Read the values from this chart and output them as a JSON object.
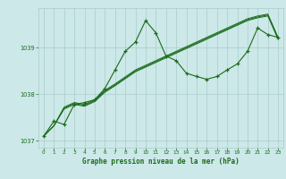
{
  "background_color": "#cce8e8",
  "grid_color": "#aacccc",
  "line_color": "#1a6b1a",
  "title": "Graphe pression niveau de la mer (hPa)",
  "xlim": [
    -0.5,
    23.5
  ],
  "ylim": [
    1036.85,
    1039.85
  ],
  "yticks": [
    1037,
    1038,
    1039
  ],
  "xticks": [
    0,
    1,
    2,
    3,
    4,
    5,
    6,
    7,
    8,
    9,
    10,
    11,
    12,
    13,
    14,
    15,
    16,
    17,
    18,
    19,
    20,
    21,
    22,
    23
  ],
  "line1": [
    1037.1,
    1037.42,
    1037.35,
    1037.78,
    1037.82,
    1037.88,
    1038.12,
    1038.52,
    1038.92,
    1039.12,
    1039.58,
    1039.32,
    1038.82,
    1038.72,
    1038.45,
    1038.38,
    1038.32,
    1038.38,
    1038.52,
    1038.65,
    1038.92,
    1039.42,
    1039.28,
    1039.22
  ],
  "line2": [
    1037.1,
    1037.32,
    1037.72,
    1037.82,
    1037.78,
    1037.88,
    1038.08,
    1038.22,
    1038.37,
    1038.52,
    1038.62,
    1038.72,
    1038.82,
    1038.92,
    1039.02,
    1039.12,
    1039.22,
    1039.32,
    1039.42,
    1039.52,
    1039.62,
    1039.68,
    1039.72,
    1039.22
  ],
  "line3": [
    1037.1,
    1037.32,
    1037.7,
    1037.8,
    1037.76,
    1037.86,
    1038.06,
    1038.2,
    1038.35,
    1038.5,
    1038.6,
    1038.7,
    1038.8,
    1038.9,
    1039.0,
    1039.1,
    1039.2,
    1039.3,
    1039.4,
    1039.5,
    1039.6,
    1039.66,
    1039.7,
    1039.2
  ],
  "line4": [
    1037.1,
    1037.32,
    1037.68,
    1037.78,
    1037.74,
    1037.84,
    1038.04,
    1038.18,
    1038.33,
    1038.48,
    1038.58,
    1038.68,
    1038.78,
    1038.88,
    1038.98,
    1039.08,
    1039.18,
    1039.28,
    1039.38,
    1039.48,
    1039.58,
    1039.64,
    1039.68,
    1039.18
  ]
}
